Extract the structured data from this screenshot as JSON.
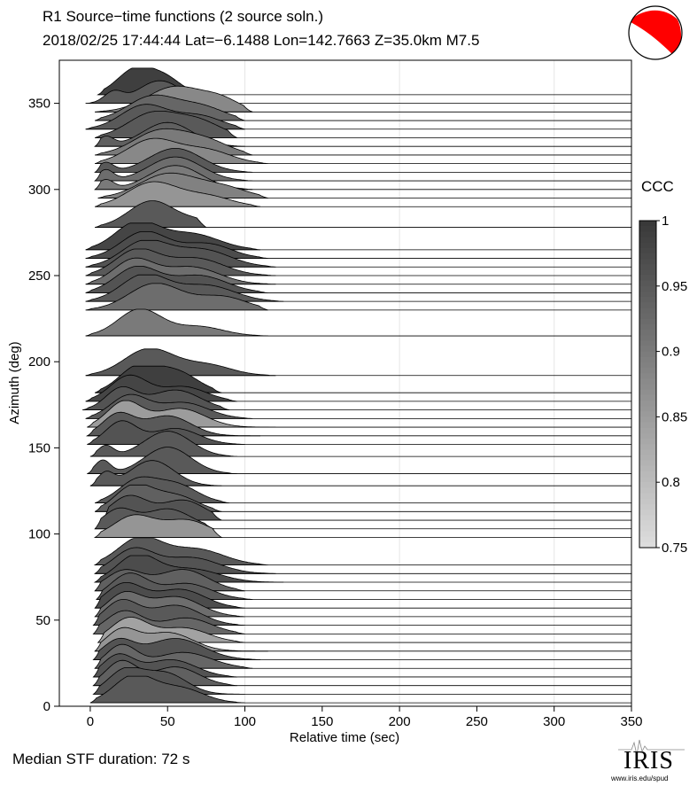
{
  "header": {
    "title": "R1 Source−time functions (2 source soln.)",
    "subtitle": "2018/02/25 17:44:44  Lat=−6.1488 Lon=142.7663  Z=35.0km  M7.5"
  },
  "footer": {
    "median": "Median STF duration: 72 s",
    "logo_text": "IRIS",
    "logo_url": "www.iris.edu/spud"
  },
  "colorbar": {
    "label": "CCC",
    "ticks": [
      "1",
      "0.95",
      "0.9",
      "0.85",
      "0.8",
      "0.75"
    ],
    "range": [
      0.75,
      1.0
    ]
  },
  "colors": {
    "mechanism_fill": "#ff0000",
    "dark": "#3a3a3a",
    "light": "#dcdcdc"
  },
  "chart_data": {
    "type": "area",
    "title": "R1 Source−time functions (2 source soln.)",
    "xlabel": "Relative time (sec)",
    "ylabel": "Azimuth (deg)",
    "xlim": [
      -20,
      350
    ],
    "ylim": [
      0,
      375
    ],
    "xticks": [
      0,
      50,
      100,
      150,
      200,
      250,
      300,
      350
    ],
    "yticks": [
      0,
      50,
      100,
      150,
      200,
      250,
      300,
      350
    ],
    "grid": false,
    "traces": [
      {
        "az": 2,
        "start": 0,
        "p1": 28,
        "a1": 1.0,
        "w1": 13,
        "p2": 58,
        "a2": 0.55,
        "w2": 15,
        "end": 100,
        "ccc": 0.95
      },
      {
        "az": 7,
        "start": 2,
        "p1": 22,
        "a1": 0.85,
        "w1": 11,
        "p2": 48,
        "a2": 0.8,
        "w2": 14,
        "end": 100,
        "ccc": 0.96
      },
      {
        "az": 12,
        "start": 2,
        "p1": 20,
        "a1": 0.9,
        "w1": 10,
        "p2": 55,
        "a2": 0.7,
        "w2": 15,
        "end": 95,
        "ccc": 0.94
      },
      {
        "az": 17,
        "start": 2,
        "p1": 18,
        "a1": 0.8,
        "w1": 10,
        "p2": 52,
        "a2": 0.65,
        "w2": 16,
        "end": 95,
        "ccc": 0.96
      },
      {
        "az": 22,
        "start": 3,
        "p1": 20,
        "a1": 0.85,
        "w1": 10,
        "p2": 60,
        "a2": 0.6,
        "w2": 18,
        "end": 105,
        "ccc": 0.93
      },
      {
        "az": 27,
        "start": 2,
        "p1": 18,
        "a1": 0.7,
        "w1": 10,
        "p2": 55,
        "a2": 0.8,
        "w2": 18,
        "end": 110,
        "ccc": 0.96
      },
      {
        "az": 32,
        "start": 3,
        "p1": 20,
        "a1": 0.75,
        "w1": 10,
        "p2": 50,
        "a2": 0.7,
        "w2": 16,
        "end": 115,
        "ccc": 0.86
      },
      {
        "az": 37,
        "start": 5,
        "p1": 25,
        "a1": 0.9,
        "w1": 12,
        "p2": 60,
        "a2": 0.55,
        "w2": 16,
        "end": 100,
        "ccc": 0.84
      },
      {
        "az": 42,
        "start": 2,
        "p1": 22,
        "a1": 0.85,
        "w1": 12,
        "p2": 62,
        "a2": 0.6,
        "w2": 16,
        "end": 100,
        "ccc": 0.93
      },
      {
        "az": 47,
        "start": 2,
        "p1": 20,
        "a1": 0.9,
        "w1": 11,
        "p2": 55,
        "a2": 0.75,
        "w2": 16,
        "end": 100,
        "ccc": 0.95
      },
      {
        "az": 52,
        "start": 3,
        "p1": 22,
        "a1": 0.85,
        "w1": 11,
        "p2": 55,
        "a2": 0.75,
        "w2": 16,
        "end": 100,
        "ccc": 0.92
      },
      {
        "az": 57,
        "start": 3,
        "p1": 22,
        "a1": 0.9,
        "w1": 12,
        "p2": 58,
        "a2": 0.7,
        "w2": 16,
        "end": 100,
        "ccc": 0.97
      },
      {
        "az": 62,
        "start": 4,
        "p1": 25,
        "a1": 0.95,
        "w1": 12,
        "p2": 62,
        "a2": 0.6,
        "w2": 16,
        "end": 105,
        "ccc": 0.95
      },
      {
        "az": 67,
        "start": 3,
        "p1": 22,
        "a1": 0.75,
        "w1": 12,
        "p2": 60,
        "a2": 0.8,
        "w2": 16,
        "end": 100,
        "ccc": 0.94
      },
      {
        "az": 72,
        "start": 3,
        "p1": 30,
        "a1": 1.0,
        "w1": 13,
        "p2": 65,
        "a2": 0.5,
        "w2": 18,
        "end": 125,
        "ccc": 0.97
      },
      {
        "az": 77,
        "start": 3,
        "p1": 28,
        "a1": 0.9,
        "w1": 13,
        "p2": 65,
        "a2": 0.6,
        "w2": 18,
        "end": 120,
        "ccc": 0.96
      },
      {
        "az": 82,
        "start": 3,
        "p1": 32,
        "a1": 1.0,
        "w1": 14,
        "p2": 68,
        "a2": 0.6,
        "w2": 18,
        "end": 115,
        "ccc": 0.95
      },
      {
        "az": 98,
        "start": 3,
        "p1": 28,
        "a1": 0.8,
        "w1": 13,
        "p2": 62,
        "a2": 0.65,
        "w2": 15,
        "end": 85,
        "ccc": 0.86
      },
      {
        "az": 103,
        "start": 3,
        "p1": 18,
        "a1": 0.7,
        "w1": 10,
        "p2": 50,
        "a2": 0.75,
        "w2": 15,
        "end": 80,
        "ccc": 0.95
      },
      {
        "az": 108,
        "start": 8,
        "p1": 25,
        "a1": 0.9,
        "w1": 12,
        "p2": 60,
        "a2": 0.75,
        "w2": 14,
        "end": 85,
        "ccc": 0.96
      },
      {
        "az": 113,
        "start": 3,
        "p1": 28,
        "a1": 0.95,
        "w1": 12,
        "p2": 55,
        "a2": 0.6,
        "w2": 14,
        "end": 85,
        "ccc": 0.94
      },
      {
        "az": 118,
        "start": 3,
        "p1": 30,
        "a1": 0.8,
        "w1": 12,
        "p2": 55,
        "a2": 0.7,
        "w2": 14,
        "end": 90,
        "ccc": 0.95
      },
      {
        "az": 128,
        "start": 0,
        "p1": 10,
        "a1": 0.45,
        "w1": 5,
        "p2": 40,
        "a2": 0.95,
        "w2": 14,
        "end": 85,
        "ccc": 0.95
      },
      {
        "az": 135,
        "start": -2,
        "p1": 8,
        "a1": 0.5,
        "w1": 5,
        "p2": 50,
        "a2": 1.0,
        "w2": 15,
        "end": 95,
        "ccc": 0.95
      },
      {
        "az": 145,
        "start": 0,
        "p1": 10,
        "a1": 0.4,
        "w1": 5,
        "p2": 50,
        "a2": 0.95,
        "w2": 15,
        "end": 95,
        "ccc": 0.95
      },
      {
        "az": 152,
        "start": -2,
        "p1": 20,
        "a1": 0.85,
        "w1": 10,
        "p2": 55,
        "a2": 0.6,
        "w2": 15,
        "end": 100,
        "ccc": 0.96
      },
      {
        "az": 157,
        "start": -2,
        "p1": 18,
        "a1": 0.8,
        "w1": 10,
        "p2": 50,
        "a2": 0.75,
        "w2": 15,
        "end": 110,
        "ccc": 0.95
      },
      {
        "az": 162,
        "start": -2,
        "p1": 22,
        "a1": 0.95,
        "w1": 11,
        "p2": 58,
        "a2": 0.7,
        "w2": 16,
        "end": 120,
        "ccc": 0.85
      },
      {
        "az": 167,
        "start": -3,
        "p1": 25,
        "a1": 0.85,
        "w1": 12,
        "p2": 60,
        "a2": 0.6,
        "w2": 16,
        "end": 105,
        "ccc": 0.95
      },
      {
        "az": 172,
        "start": -5,
        "p1": 20,
        "a1": 0.8,
        "w1": 10,
        "p2": 55,
        "a2": 0.75,
        "w2": 16,
        "end": 90,
        "ccc": 0.96
      },
      {
        "az": 177,
        "start": -3,
        "p1": 25,
        "a1": 0.95,
        "w1": 12,
        "p2": 60,
        "a2": 0.55,
        "w2": 15,
        "end": 95,
        "ccc": 0.98
      },
      {
        "az": 182,
        "start": 3,
        "p1": 30,
        "a1": 0.9,
        "w1": 12,
        "p2": 55,
        "a2": 0.8,
        "w2": 14,
        "end": 85,
        "ccc": 0.99
      },
      {
        "az": 192,
        "start": -3,
        "p1": 38,
        "a1": 1.0,
        "w1": 16,
        "p2": 75,
        "a2": 0.4,
        "w2": 16,
        "end": 120,
        "ccc": 0.95
      },
      {
        "az": 215,
        "start": -3,
        "p1": 32,
        "a1": 1.0,
        "w1": 14,
        "p2": 70,
        "a2": 0.35,
        "w2": 16,
        "end": 115,
        "ccc": 0.9
      },
      {
        "az": 230,
        "start": -3,
        "p1": 42,
        "a1": 1.0,
        "w1": 17,
        "p2": 85,
        "a2": 0.5,
        "w2": 16,
        "end": 115,
        "ccc": 0.92
      },
      {
        "az": 235,
        "start": -3,
        "p1": 35,
        "a1": 1.0,
        "w1": 15,
        "p2": 75,
        "a2": 0.6,
        "w2": 18,
        "end": 125,
        "ccc": 0.95
      },
      {
        "az": 240,
        "start": -3,
        "p1": 30,
        "a1": 0.95,
        "w1": 14,
        "p2": 70,
        "a2": 0.65,
        "w2": 18,
        "end": 115,
        "ccc": 0.96
      },
      {
        "az": 245,
        "start": -3,
        "p1": 28,
        "a1": 0.9,
        "w1": 13,
        "p2": 65,
        "a2": 0.65,
        "w2": 18,
        "end": 120,
        "ccc": 0.92
      },
      {
        "az": 250,
        "start": -3,
        "p1": 30,
        "a1": 0.95,
        "w1": 14,
        "p2": 68,
        "a2": 0.65,
        "w2": 18,
        "end": 120,
        "ccc": 0.95
      },
      {
        "az": 255,
        "start": -3,
        "p1": 35,
        "a1": 0.95,
        "w1": 15,
        "p2": 72,
        "a2": 0.65,
        "w2": 18,
        "end": 120,
        "ccc": 0.96
      },
      {
        "az": 260,
        "start": -3,
        "p1": 35,
        "a1": 1.0,
        "w1": 15,
        "p2": 75,
        "a2": 0.55,
        "w2": 16,
        "end": 115,
        "ccc": 0.97
      },
      {
        "az": 265,
        "start": -3,
        "p1": 30,
        "a1": 1.0,
        "w1": 14,
        "p2": 65,
        "a2": 0.6,
        "w2": 18,
        "end": 110,
        "ccc": 0.98
      },
      {
        "az": 278,
        "start": 3,
        "p1": 40,
        "a1": 1.0,
        "w1": 15,
        "p2": 70,
        "a2": 0.2,
        "w2": 10,
        "end": 75,
        "ccc": 0.95
      },
      {
        "az": 290,
        "start": 3,
        "p1": 40,
        "a1": 0.9,
        "w1": 16,
        "p2": 75,
        "a2": 0.4,
        "w2": 16,
        "end": 110,
        "ccc": 0.86
      },
      {
        "az": 295,
        "start": 5,
        "p1": 50,
        "a1": 0.9,
        "w1": 18,
        "p2": 85,
        "a2": 0.4,
        "w2": 16,
        "end": 115,
        "ccc": 0.89
      },
      {
        "az": 300,
        "start": 3,
        "p1": 10,
        "a1": 0.35,
        "w1": 5,
        "p2": 55,
        "a2": 0.9,
        "w2": 17,
        "end": 105,
        "ccc": 0.9
      },
      {
        "az": 305,
        "start": 3,
        "p1": 10,
        "a1": 0.4,
        "w1": 5,
        "p2": 55,
        "a2": 0.9,
        "w2": 17,
        "end": 105,
        "ccc": 0.92
      },
      {
        "az": 310,
        "start": 3,
        "p1": 10,
        "a1": 0.35,
        "w1": 5,
        "p2": 55,
        "a2": 0.9,
        "w2": 17,
        "end": 105,
        "ccc": 0.95
      },
      {
        "az": 315,
        "start": 3,
        "p1": 40,
        "a1": 0.9,
        "w1": 16,
        "p2": 75,
        "a2": 0.5,
        "w2": 16,
        "end": 115,
        "ccc": 0.88
      },
      {
        "az": 320,
        "start": 3,
        "p1": 45,
        "a1": 0.9,
        "w1": 17,
        "p2": 75,
        "a2": 0.5,
        "w2": 15,
        "end": 105,
        "ccc": 0.9
      },
      {
        "az": 325,
        "start": 3,
        "p1": 10,
        "a1": 0.35,
        "w1": 5,
        "p2": 50,
        "a2": 0.9,
        "w2": 16,
        "end": 100,
        "ccc": 0.94
      },
      {
        "az": 330,
        "start": 3,
        "p1": 40,
        "a1": 0.9,
        "w1": 16,
        "p2": 70,
        "a2": 0.6,
        "w2": 15,
        "end": 95,
        "ccc": 0.95
      },
      {
        "az": 335,
        "start": -3,
        "p1": 35,
        "a1": 0.9,
        "w1": 15,
        "p2": 70,
        "a2": 0.5,
        "w2": 15,
        "end": 100,
        "ccc": 0.95
      },
      {
        "az": 340,
        "start": 3,
        "p1": 40,
        "a1": 0.9,
        "w1": 16,
        "p2": 72,
        "a2": 0.5,
        "w2": 15,
        "end": 100,
        "ccc": 0.93
      },
      {
        "az": 345,
        "start": 3,
        "p1": 55,
        "a1": 0.95,
        "w1": 18,
        "p2": 85,
        "a2": 0.4,
        "w2": 12,
        "end": 105,
        "ccc": 0.88
      },
      {
        "az": 350,
        "start": -3,
        "p1": 15,
        "a1": 0.4,
        "w1": 6,
        "p2": 45,
        "a2": 0.85,
        "w2": 14,
        "end": 85,
        "ccc": 0.95
      },
      {
        "az": 355,
        "start": 5,
        "p1": 30,
        "a1": 1.0,
        "w1": 12,
        "p2": 50,
        "a2": 0.5,
        "w2": 10,
        "end": 75,
        "ccc": 0.99
      }
    ]
  }
}
